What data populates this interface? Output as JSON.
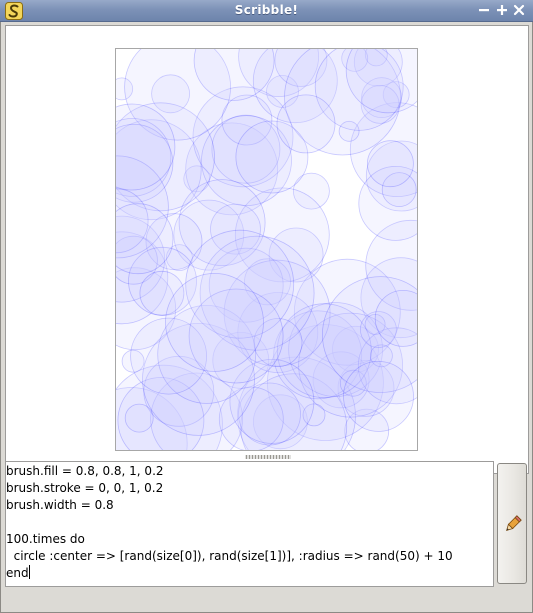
{
  "window": {
    "title": "Scribble!",
    "controls": [
      "minimize",
      "maximize",
      "close"
    ]
  },
  "icons": {
    "app": "scribble-s-icon",
    "run": "pencil-icon"
  },
  "colors": {
    "titlebar": "#7d92b7",
    "circle_fill": "#ccccff",
    "circle_stroke": "#0000ff"
  },
  "editor": {
    "lines": [
      "brush.fill = 0.8, 0.8, 1, 0.2",
      "brush.stroke = 0, 0, 1, 0.2",
      "brush.width = 0.8",
      "",
      "100.times do",
      "  circle :center => [rand(size[0]), rand(size[1])], :radius => rand(50) + 10",
      "end"
    ]
  }
}
